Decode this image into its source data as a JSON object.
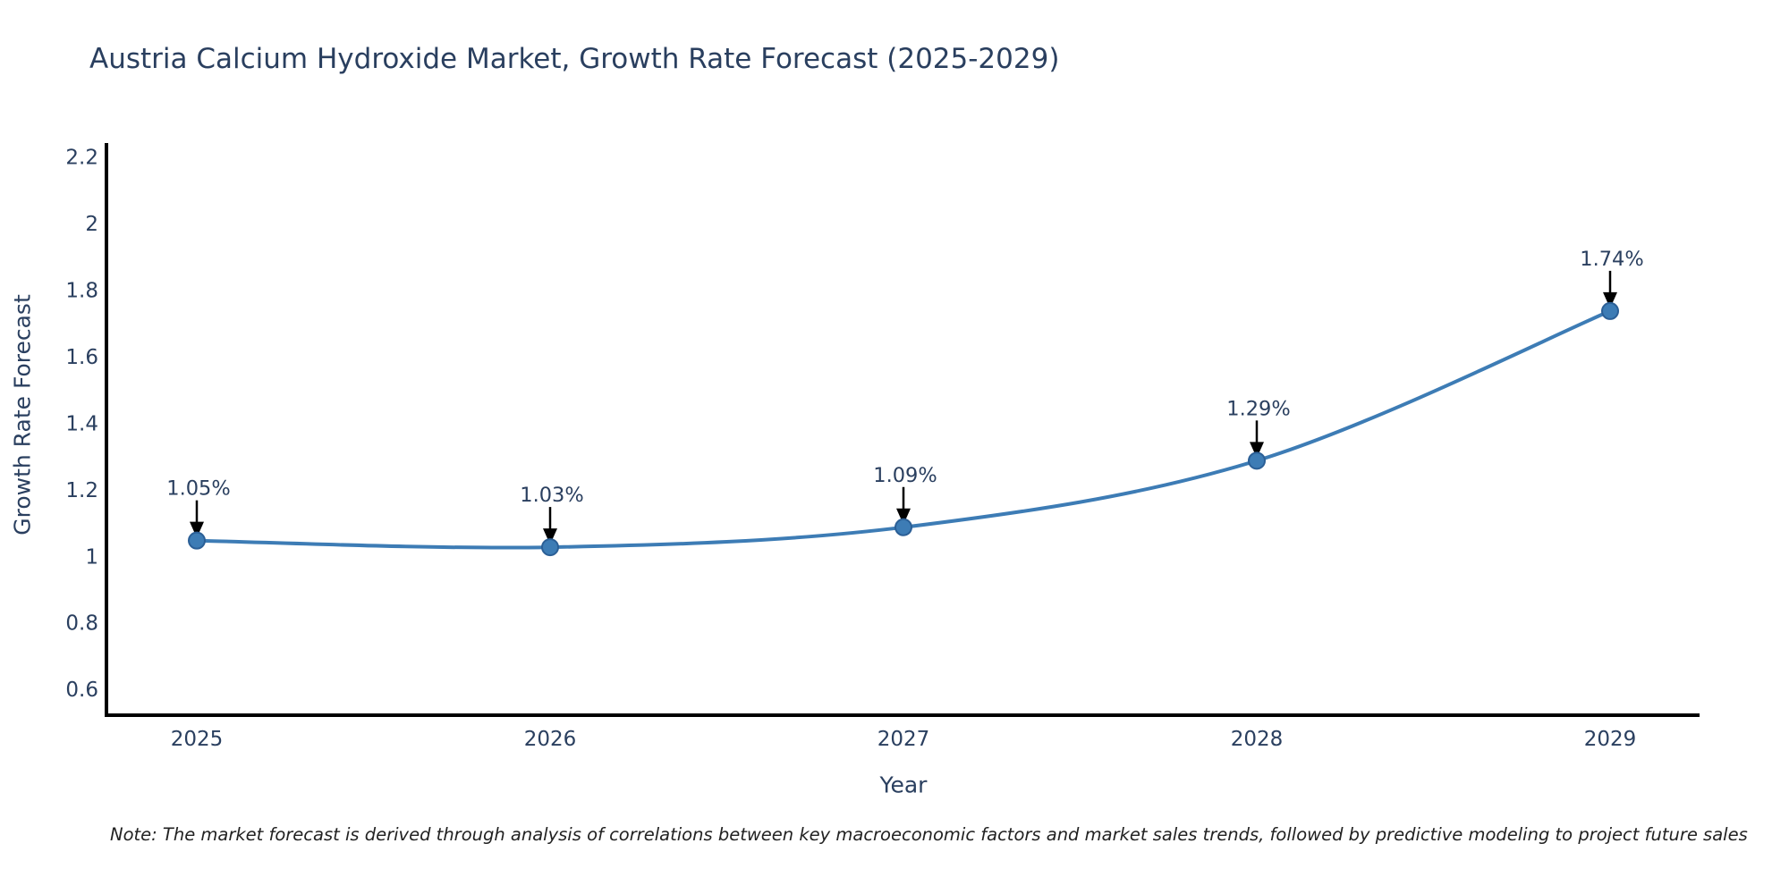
{
  "note": "Note: The market forecast is derived through analysis of correlations between key macroeconomic factors and market sales trends, followed by predictive modeling to project future sales",
  "chart_data": {
    "type": "line",
    "title": "Austria Calcium Hydroxide Market, Growth Rate Forecast (2025-2029)",
    "xlabel": "Year",
    "ylabel": "Growth Rate Forecast",
    "categories": [
      "2025",
      "2026",
      "2027",
      "2028",
      "2029"
    ],
    "values": [
      1.05,
      1.03,
      1.09,
      1.29,
      1.74
    ],
    "point_labels": [
      "1.05%",
      "1.03%",
      "1.09%",
      "1.29%",
      "1.74%"
    ],
    "yticks": [
      0.6,
      0.8,
      1,
      1.2,
      1.4,
      1.6,
      1.8,
      2,
      2.2
    ],
    "ytick_labels": [
      "0.6",
      "0.8",
      "1",
      "1.2",
      "1.4",
      "1.6",
      "1.8",
      "2",
      "2.2"
    ],
    "ylim": [
      0.525,
      2.245
    ],
    "grid": false,
    "line_shape": "spline",
    "legend": "none",
    "colors": {
      "line": "#3d7cb5",
      "marker": "#3d7cb5",
      "marker_edge": "#2b5f96",
      "arrow": "#000000",
      "text": "#2a3f5f",
      "axis": "#000000",
      "note": "#222222"
    }
  }
}
